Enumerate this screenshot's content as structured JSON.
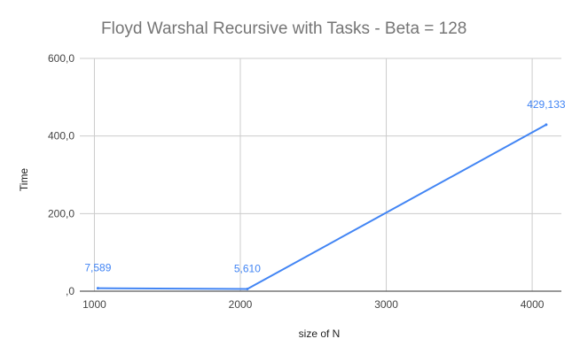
{
  "chart_data": {
    "type": "line",
    "title": "Floyd Warshal Recursive with Tasks - Beta = 128",
    "xlabel": "size of N",
    "ylabel": "Time",
    "x": [
      1024,
      2048,
      4096
    ],
    "series": [
      {
        "name": "",
        "values": [
          7.589,
          5.61,
          429.133
        ],
        "labels": [
          "7,589",
          "5,610",
          "429,133"
        ],
        "color": "#4285f4"
      }
    ],
    "xlim": [
      900,
      4200
    ],
    "ylim": [
      0,
      600
    ],
    "xticks": [
      1000,
      2000,
      3000,
      4000
    ],
    "xtick_labels": [
      "1000",
      "2000",
      "3000",
      "4000"
    ],
    "yticks": [
      0,
      200,
      400,
      600
    ],
    "ytick_labels": [
      ",0",
      "200,0",
      "400,0",
      "600,0"
    ],
    "grid": true,
    "legend": "none",
    "colors": {
      "gridline": "#cccccc",
      "axis": "#333333",
      "title": "#757575",
      "tick_label": "#444444"
    }
  }
}
